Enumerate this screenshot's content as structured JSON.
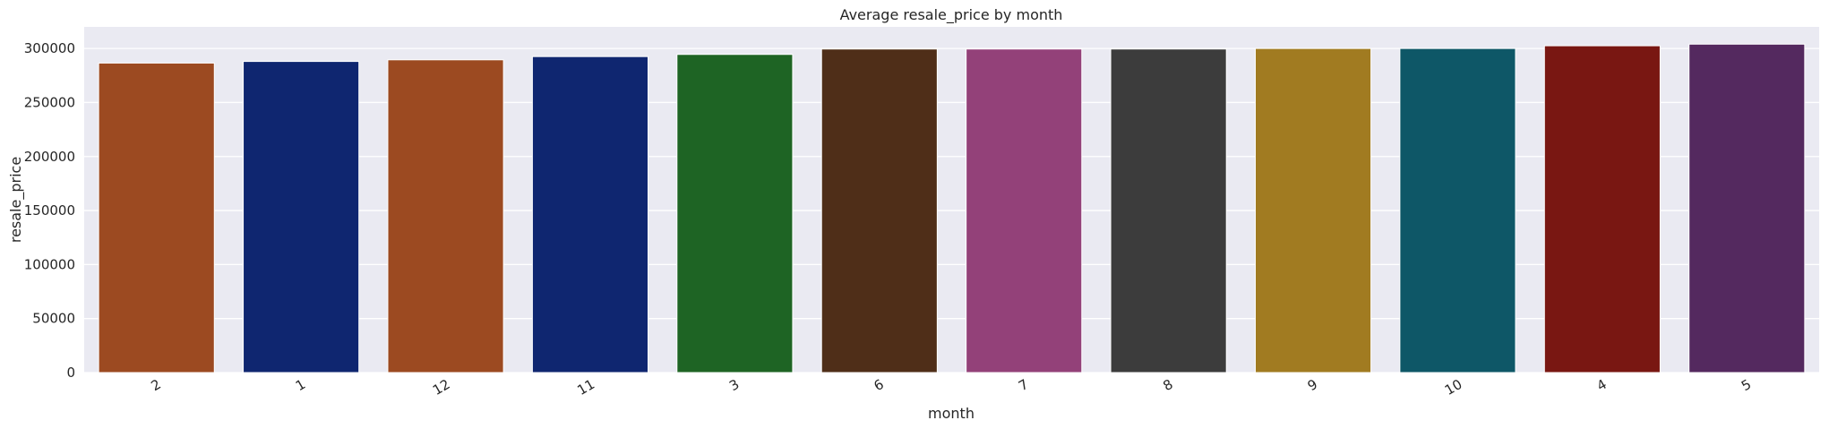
{
  "chart_data": {
    "type": "bar",
    "title": "Average resale_price by month",
    "xlabel": "month",
    "ylabel": "resale_price",
    "categories": [
      "2",
      "1",
      "12",
      "11",
      "3",
      "6",
      "7",
      "8",
      "9",
      "10",
      "4",
      "5"
    ],
    "values": [
      286500,
      288000,
      289500,
      292500,
      294500,
      299500,
      299500,
      299500,
      300000,
      300000,
      302500,
      304000
    ],
    "colors": [
      "#9c4a21",
      "#0f2670",
      "#9c4a21",
      "#0f2670",
      "#1e6424",
      "#4f2e18",
      "#934179",
      "#3c3c3c",
      "#a17b21",
      "#0e5767",
      "#791712",
      "#54295f"
    ],
    "yticks": [
      0,
      50000,
      100000,
      150000,
      200000,
      250000,
      300000
    ],
    "ytick_labels": [
      "0",
      "50000",
      "100000",
      "150000",
      "200000",
      "250000",
      "300000"
    ],
    "ylim": [
      0,
      320000
    ],
    "grid": true,
    "background": "#eaeaf2",
    "grid_color": "#ffffff"
  }
}
